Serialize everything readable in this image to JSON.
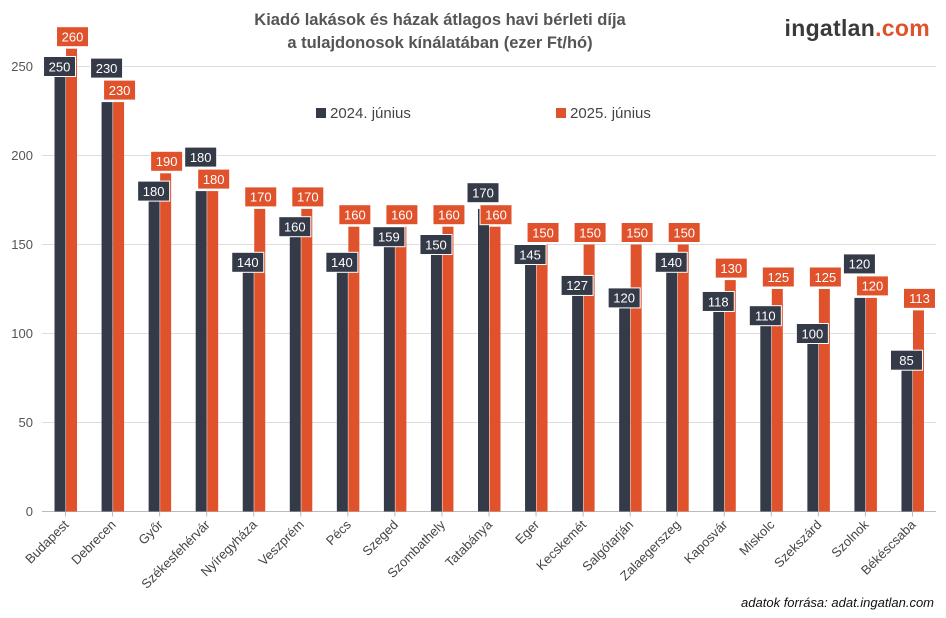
{
  "header": {
    "title_line1": "Kiadó lakások és házak átlagos havi bérleti díja",
    "title_line2": "a tulajdonosok kínálatában (ezer Ft/hó)",
    "brand_part1": "ingatlan",
    "brand_part2": ".com"
  },
  "footer": {
    "source": "adatok forrása: adat.ingatlan.com"
  },
  "colors": {
    "series1": "#353a48",
    "series2": "#e0522b",
    "grid": "#dddddd",
    "axis": "#bbbbbb"
  },
  "chart_data": {
    "type": "bar",
    "title": "Kiadó lakások és házak átlagos havi bérleti díja a tulajdonosok kínálatában (ezer Ft/hó)",
    "categories": [
      "Budapest",
      "Debrecen",
      "Győr",
      "Székesfehérvár",
      "Nyíregyháza",
      "Veszprém",
      "Pécs",
      "Szeged",
      "Szombathely",
      "Tatabánya",
      "Eger",
      "Kecskemét",
      "Salgótarján",
      "Zalaegerszeg",
      "Kaposvár",
      "Miskolc",
      "Szekszárd",
      "Szolnok",
      "Békéscsaba"
    ],
    "series": [
      {
        "name": "2024. június",
        "values": [
          250,
          230,
          180,
          180,
          140,
          160,
          140,
          159,
          150,
          170,
          145,
          127,
          120,
          140,
          118,
          110,
          100,
          120,
          85
        ]
      },
      {
        "name": "2025. június",
        "values": [
          260,
          230,
          190,
          180,
          170,
          170,
          160,
          160,
          160,
          160,
          150,
          150,
          150,
          150,
          130,
          125,
          125,
          120,
          113
        ]
      }
    ],
    "ylim": [
      0,
      260
    ],
    "yticks": [
      0,
      50,
      100,
      150,
      200,
      250
    ],
    "grid": true,
    "legend_position": "top-center",
    "xlabel": "",
    "ylabel": ""
  }
}
